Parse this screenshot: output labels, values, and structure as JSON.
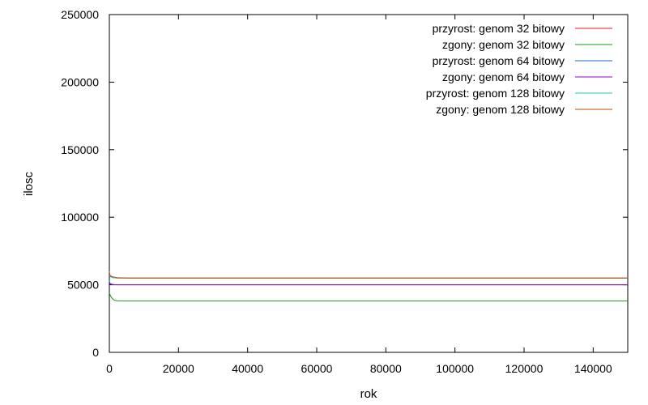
{
  "chart_data": {
    "type": "line",
    "title": "",
    "xlabel": "rok",
    "ylabel": "ilosc",
    "xlim": [
      0,
      150000
    ],
    "ylim": [
      0,
      250000
    ],
    "xticks": [
      "0",
      "20000",
      "40000",
      "60000",
      "80000",
      "100000",
      "120000",
      "140000"
    ],
    "yticks": [
      "0",
      "50000",
      "100000",
      "150000",
      "200000",
      "250000"
    ],
    "grid": false,
    "legend_position": "top-right",
    "series": [
      {
        "name": "przyrost: genom 32 bitowy",
        "color": "#e41a1c",
        "x": [
          0,
          200,
          500,
          1000,
          2000,
          150000
        ],
        "y": [
          58000,
          57000,
          56000,
          55500,
          55000,
          55000
        ]
      },
      {
        "name": "zgony: genom 32 bitowy",
        "color": "#1a9a1a",
        "x": [
          0,
          300,
          800,
          1500,
          2500,
          150000
        ],
        "y": [
          44000,
          42000,
          40000,
          38500,
          38000,
          38000
        ]
      },
      {
        "name": "przyrost: genom 64 bitowy",
        "color": "#1e64c8",
        "x": [
          0,
          200,
          600,
          1500,
          150000
        ],
        "y": [
          53000,
          51000,
          50500,
          50000,
          50000
        ]
      },
      {
        "name": "zgony: genom 64 bitowy",
        "color": "#9400d3",
        "x": [
          0,
          300,
          700,
          2000,
          5000,
          10000,
          150000
        ],
        "y": [
          51000,
          50500,
          50200,
          50000,
          50000,
          50000,
          50000
        ]
      },
      {
        "name": "przyrost: genom 128 bitowy",
        "color": "#17c7c7",
        "x": [
          0,
          300,
          1000,
          3000,
          150000
        ],
        "y": [
          57000,
          56000,
          55200,
          55000,
          55000
        ]
      },
      {
        "name": "zgony: genom 128 bitowy",
        "color": "#b8520a",
        "x": [
          0,
          200,
          800,
          2500,
          6000,
          150000
        ],
        "y": [
          60000,
          57000,
          56000,
          55200,
          55000,
          55000
        ]
      }
    ]
  }
}
